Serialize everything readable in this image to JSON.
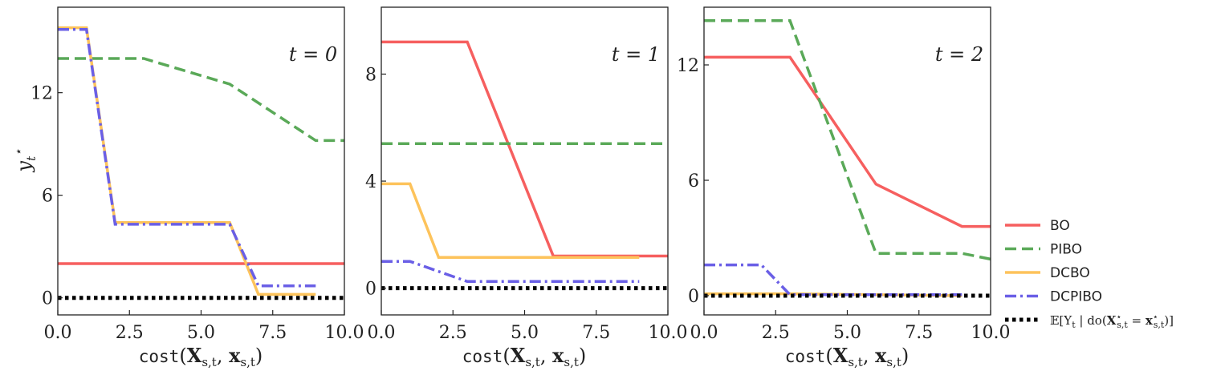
{
  "chart_data": [
    {
      "type": "line",
      "panel_label": "t = 0",
      "xlabel": "cost(X_{s,t}, x_{s,t})",
      "ylabel": "y_t*",
      "xlim": [
        0,
        10
      ],
      "ylim": [
        -1,
        17
      ],
      "xticks": [
        0,
        2.5,
        5,
        7.5,
        10
      ],
      "xticklabels": [
        "0.0",
        "2.5",
        "5.0",
        "7.5",
        "10.0"
      ],
      "yticks": [
        0,
        6,
        12
      ],
      "yticklabels": [
        "0",
        "6",
        "12"
      ],
      "series": [
        {
          "name": "BO",
          "x": [
            0,
            10
          ],
          "y": [
            2.0,
            2.0
          ]
        },
        {
          "name": "PIBO",
          "x": [
            0,
            3,
            6,
            9,
            10
          ],
          "y": [
            14.0,
            14.0,
            12.5,
            9.2,
            9.2
          ]
        },
        {
          "name": "DCBO",
          "x": [
            0,
            1,
            2,
            6,
            7,
            9
          ],
          "y": [
            15.8,
            15.8,
            4.4,
            4.4,
            0.2,
            0.2
          ]
        },
        {
          "name": "DCPIBO",
          "x": [
            0,
            1,
            2,
            6,
            7,
            9
          ],
          "y": [
            15.7,
            15.7,
            4.3,
            4.3,
            0.7,
            0.7
          ]
        },
        {
          "name": "E[Y_t | do(X*_{s,t} = x*_{s,t})]",
          "x": [
            0,
            10
          ],
          "y": [
            0,
            0
          ]
        }
      ]
    },
    {
      "type": "line",
      "panel_label": "t = 1",
      "xlabel": "cost(X_{s,t}, x_{s,t})",
      "xlim": [
        0,
        10
      ],
      "ylim": [
        -1,
        10.5
      ],
      "xticks": [
        0,
        2.5,
        5,
        7.5,
        10
      ],
      "xticklabels": [
        "0.0",
        "2.5",
        "5.0",
        "7.5",
        "10.0"
      ],
      "yticks": [
        0,
        4,
        8
      ],
      "yticklabels": [
        "0",
        "4",
        "8"
      ],
      "series": [
        {
          "name": "BO",
          "x": [
            0,
            3,
            6,
            10
          ],
          "y": [
            9.2,
            9.2,
            1.2,
            1.2
          ]
        },
        {
          "name": "PIBO",
          "x": [
            0,
            10
          ],
          "y": [
            5.4,
            5.4
          ]
        },
        {
          "name": "DCBO",
          "x": [
            0,
            1,
            2,
            9
          ],
          "y": [
            3.9,
            3.9,
            1.15,
            1.15
          ]
        },
        {
          "name": "DCPIBO",
          "x": [
            0,
            1,
            3,
            9
          ],
          "y": [
            1.0,
            1.0,
            0.25,
            0.25
          ]
        },
        {
          "name": "E[Y_t | do(X*_{s,t} = x*_{s,t})]",
          "x": [
            0,
            10
          ],
          "y": [
            0,
            0
          ]
        }
      ]
    },
    {
      "type": "line",
      "panel_label": "t = 2",
      "xlabel": "cost(X_{s,t}, x_{s,t})",
      "xlim": [
        0,
        10
      ],
      "ylim": [
        -1,
        15
      ],
      "xticks": [
        0,
        2.5,
        5,
        7.5,
        10
      ],
      "xticklabels": [
        "0.0",
        "2.5",
        "5.0",
        "7.5",
        "10.0"
      ],
      "yticks": [
        0,
        6,
        12
      ],
      "yticklabels": [
        "0",
        "6",
        "12"
      ],
      "series": [
        {
          "name": "BO",
          "x": [
            0,
            3,
            6,
            9,
            10
          ],
          "y": [
            12.4,
            12.4,
            5.8,
            3.6,
            3.6
          ]
        },
        {
          "name": "PIBO",
          "x": [
            0,
            3,
            6,
            9,
            10
          ],
          "y": [
            14.3,
            14.3,
            2.2,
            2.2,
            1.9
          ]
        },
        {
          "name": "DCBO",
          "x": [
            0,
            3,
            9
          ],
          "y": [
            0.1,
            0.1,
            0.0
          ]
        },
        {
          "name": "DCPIBO",
          "x": [
            0,
            2,
            3,
            9
          ],
          "y": [
            1.6,
            1.6,
            0.05,
            0.05
          ]
        },
        {
          "name": "E[Y_t | do(X*_{s,t} = x*_{s,t})]",
          "x": [
            0,
            10
          ],
          "y": [
            0,
            0
          ]
        }
      ]
    }
  ],
  "styles": {
    "BO": {
      "color": "#f65f5f",
      "dash": "",
      "width": 3.5
    },
    "PIBO": {
      "color": "#5aa958",
      "dash": "14 7",
      "width": 3.5
    },
    "DCBO": {
      "color": "#fdc35b",
      "dash": "",
      "width": 3.5
    },
    "DCPIBO": {
      "color": "#6a5fe6",
      "dash": "14 5 3 5",
      "width": 3.5
    },
    "E[Y_t | do(X*_{s,t} = x*_{s,t})]": {
      "color": "#000000",
      "dash": "4.5 4.5",
      "width": 5
    }
  },
  "legend": {
    "placement": "right-bottom",
    "entries": [
      "BO",
      "PIBO",
      "DCBO",
      "DCPIBO",
      "E[Y_t | do(X*_{s,t} = x*_{s,t})]"
    ]
  }
}
